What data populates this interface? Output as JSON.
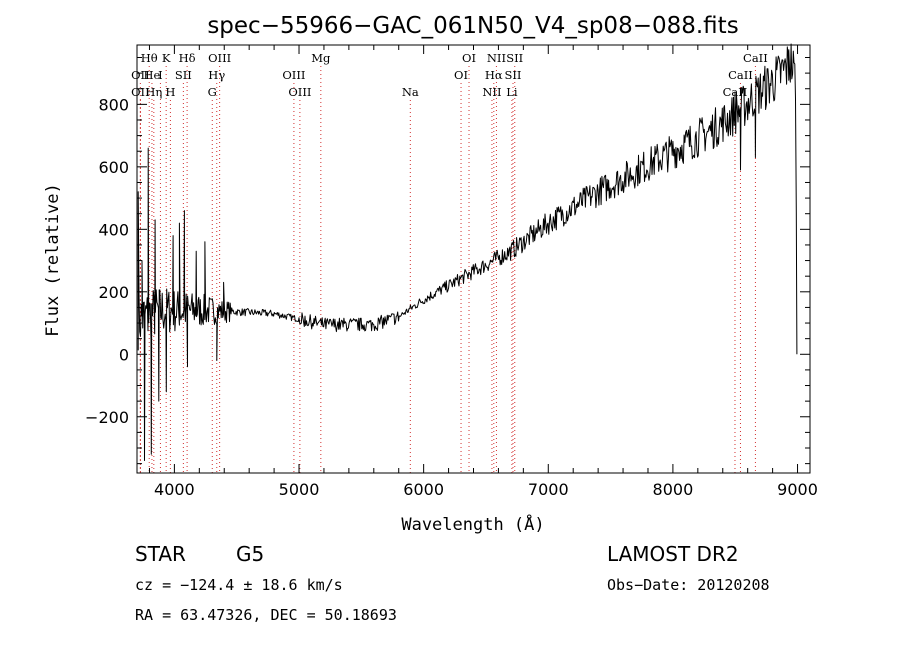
{
  "colors": {
    "spectrum": "#000000",
    "line_marker": "#d23030",
    "frame": "#000000"
  },
  "chart_data": {
    "type": "line",
    "title": "spec−55966−GAC_061N50_V4_sp08−088.fits",
    "xlabel": "Wavelength (Å)",
    "ylabel": "Flux (relative)",
    "xlim": [
      3700,
      9100
    ],
    "ylim": [
      -380,
      990
    ],
    "x_ticks": [
      4000,
      5000,
      6000,
      7000,
      8000,
      9000
    ],
    "y_ticks": [
      -200,
      0,
      200,
      400,
      600,
      800
    ],
    "grid": false,
    "series": [
      {
        "continuum": [
          [
            3700,
            110
          ],
          [
            3900,
            140
          ],
          [
            4300,
            140
          ],
          [
            4800,
            130
          ],
          [
            5200,
            95
          ],
          [
            5600,
            95
          ],
          [
            5800,
            120
          ],
          [
            6000,
            175
          ],
          [
            6400,
            265
          ],
          [
            6700,
            330
          ],
          [
            7000,
            420
          ],
          [
            7400,
            520
          ],
          [
            7700,
            585
          ],
          [
            8000,
            650
          ],
          [
            8300,
            715
          ],
          [
            8500,
            770
          ],
          [
            8700,
            840
          ],
          [
            8850,
            890
          ],
          [
            8950,
            935
          ],
          [
            8985,
            880
          ],
          [
            8995,
            0
          ]
        ],
        "peaks": [
          [
            3710,
            520
          ],
          [
            3740,
            300
          ],
          [
            3760,
            -340
          ],
          [
            3790,
            660
          ],
          [
            3815,
            -320
          ],
          [
            3845,
            430
          ],
          [
            3875,
            -150
          ],
          [
            3935,
            -120
          ],
          [
            3990,
            380
          ],
          [
            4040,
            420
          ],
          [
            4080,
            460
          ],
          [
            4105,
            -40
          ],
          [
            4175,
            330
          ],
          [
            4245,
            360
          ],
          [
            4340,
            -20
          ],
          [
            4395,
            230
          ],
          [
            8498,
            840
          ],
          [
            8542,
            590
          ],
          [
            8662,
            630
          ],
          [
            8860,
            930
          ],
          [
            8930,
            975
          ]
        ],
        "noise": {
          "amplitude": 0.09,
          "step": 6
        }
      }
    ],
    "spectral_lines": [
      {
        "label": "Hθ",
        "wl": 3798,
        "row": 0
      },
      {
        "label": "K",
        "wl": 3934,
        "row": 0
      },
      {
        "label": "Hδ",
        "wl": 4102,
        "row": 0
      },
      {
        "label": "OIII",
        "wl": 4363,
        "row": 0
      },
      {
        "label": "Mg",
        "wl": 5175,
        "row": 0
      },
      {
        "label": "OI",
        "wl": 6364,
        "row": 0
      },
      {
        "label": "NII",
        "wl": 6584,
        "row": 0
      },
      {
        "label": "SII",
        "wl": 6731,
        "row": 0
      },
      {
        "label": "CaII",
        "wl": 8662,
        "row": 0
      },
      {
        "label": "OII",
        "wl": 3727,
        "row": 1
      },
      {
        "label": "He",
        "wl": 3820,
        "row": 1
      },
      {
        "label": "I",
        "wl": 3888,
        "row": 1
      },
      {
        "label": "SII",
        "wl": 4072,
        "row": 1
      },
      {
        "label": "Hγ",
        "wl": 4340,
        "row": 1
      },
      {
        "label": "OIII",
        "wl": 4959,
        "row": 1
      },
      {
        "label": "OI",
        "wl": 6300,
        "row": 1
      },
      {
        "label": "Hα",
        "wl": 6563,
        "row": 1
      },
      {
        "label": "SII",
        "wl": 6717,
        "row": 1
      },
      {
        "label": "CaII",
        "wl": 8542,
        "row": 1
      },
      {
        "label": "OII",
        "wl": 3727,
        "row": 2
      },
      {
        "label": "Hη",
        "wl": 3835,
        "row": 2
      },
      {
        "label": "H",
        "wl": 3968,
        "row": 2
      },
      {
        "label": "G",
        "wl": 4304,
        "row": 2
      },
      {
        "label": "OIII",
        "wl": 5007,
        "row": 2
      },
      {
        "label": "Na",
        "wl": 5893,
        "row": 2
      },
      {
        "label": "NII",
        "wl": 6548,
        "row": 2
      },
      {
        "label": "Li",
        "wl": 6708,
        "row": 2
      },
      {
        "label": "CaII",
        "wl": 8498,
        "row": 2
      }
    ]
  },
  "info": {
    "object_class": "STAR",
    "subclass": "G5",
    "survey": "LAMOST DR2",
    "redshift": "cz = −124.4 ± 18.6 km/s",
    "obs_date": "Obs−Date: 20120208",
    "coords": "RA =  63.47326, DEC =  50.18693"
  }
}
